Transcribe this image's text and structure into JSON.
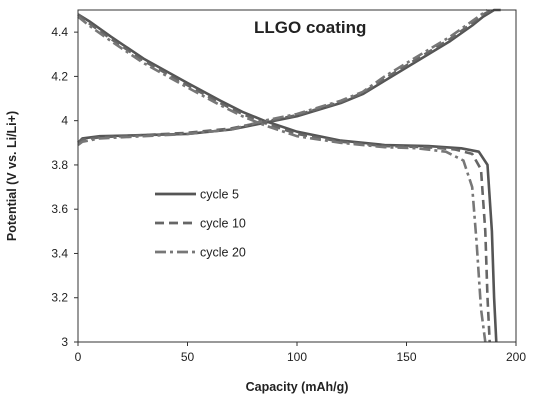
{
  "chart_data": {
    "type": "line",
    "title": "LLGO coating",
    "xlabel": "Capacity (mAh/g)",
    "ylabel": "Potential (V vs. Li/Li+)",
    "xlim": [
      0,
      200
    ],
    "ylim": [
      3,
      4.5
    ],
    "xticks": [
      0,
      50,
      100,
      150,
      200
    ],
    "yticks": [
      3,
      3.2,
      3.4,
      3.6,
      3.8,
      4,
      4.2,
      4.4
    ],
    "xtick_labels": [
      "0",
      "50",
      "100",
      "150",
      "200"
    ],
    "ytick_labels": [
      "3",
      "3.2",
      "3.4",
      "3.6",
      "3.8",
      "4",
      "4.2",
      "4.4"
    ],
    "grid": false,
    "legend_position": "center-left",
    "series": [
      {
        "name": "cycle 5",
        "style": "solid",
        "color": "#555555",
        "charge": {
          "x": [
            0,
            2,
            10,
            30,
            50,
            70,
            85,
            100,
            120,
            130,
            140,
            150,
            160,
            170,
            180,
            185,
            190,
            193
          ],
          "y": [
            3.9,
            3.92,
            3.93,
            3.935,
            3.94,
            3.96,
            3.99,
            4.02,
            4.08,
            4.12,
            4.18,
            4.24,
            4.3,
            4.36,
            4.43,
            4.47,
            4.5,
            4.5
          ]
        },
        "discharge": {
          "x": [
            0,
            5,
            15,
            30,
            50,
            65,
            75,
            85,
            100,
            120,
            140,
            160,
            175,
            183,
            187,
            189,
            190,
            191
          ],
          "y": [
            4.48,
            4.45,
            4.38,
            4.28,
            4.17,
            4.09,
            4.04,
            4.0,
            3.95,
            3.91,
            3.89,
            3.885,
            3.875,
            3.86,
            3.8,
            3.5,
            3.2,
            3.0
          ]
        }
      },
      {
        "name": "cycle 10",
        "style": "dash",
        "color": "#666666",
        "charge": {
          "x": [
            0,
            2,
            10,
            30,
            50,
            70,
            85,
            100,
            120,
            130,
            140,
            150,
            160,
            170,
            180,
            185,
            189
          ],
          "y": [
            3.9,
            3.915,
            3.925,
            3.935,
            3.945,
            3.965,
            3.995,
            4.025,
            4.085,
            4.125,
            4.19,
            4.25,
            4.31,
            4.37,
            4.44,
            4.48,
            4.5
          ]
        },
        "discharge": {
          "x": [
            0,
            5,
            15,
            30,
            50,
            65,
            75,
            85,
            100,
            120,
            140,
            160,
            172,
            180,
            184,
            186,
            187,
            188
          ],
          "y": [
            4.48,
            4.44,
            4.37,
            4.27,
            4.16,
            4.08,
            4.03,
            3.99,
            3.94,
            3.905,
            3.885,
            3.88,
            3.87,
            3.85,
            3.78,
            3.5,
            3.2,
            3.0
          ]
        }
      },
      {
        "name": "cycle 20",
        "style": "dash-dot",
        "color": "#777777",
        "charge": {
          "x": [
            0,
            2,
            10,
            30,
            50,
            70,
            85,
            100,
            120,
            130,
            140,
            150,
            160,
            170,
            180,
            187
          ],
          "y": [
            3.89,
            3.905,
            3.92,
            3.93,
            3.94,
            3.96,
            4.0,
            4.03,
            4.09,
            4.13,
            4.2,
            4.26,
            4.32,
            4.38,
            4.45,
            4.5
          ]
        },
        "discharge": {
          "x": [
            0,
            5,
            15,
            30,
            50,
            65,
            75,
            85,
            100,
            120,
            140,
            155,
            168,
            176,
            180,
            182,
            184,
            186
          ],
          "y": [
            4.47,
            4.43,
            4.36,
            4.26,
            4.15,
            4.07,
            4.02,
            3.98,
            3.93,
            3.9,
            3.88,
            3.875,
            3.86,
            3.82,
            3.7,
            3.45,
            3.15,
            3.0
          ]
        }
      }
    ]
  }
}
